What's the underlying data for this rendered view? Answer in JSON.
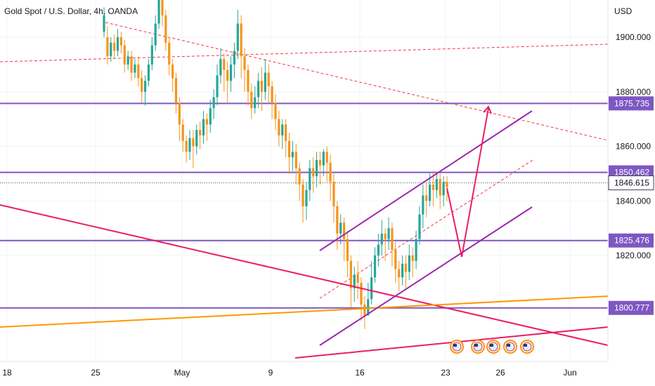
{
  "header": {
    "title": "Gold Spot / U.S. Dollar, 4h, OANDA",
    "currency": "USD"
  },
  "colors": {
    "up": "#26a69a",
    "down": "#f7931a",
    "purple": "#7e57c2",
    "violet": "#9c27b0",
    "pink": "#e91e63",
    "orange": "#ff9800",
    "red_dashed": "#f23645",
    "grid": "#f0f3fa",
    "text": "#131722"
  },
  "chart_data": {
    "type": "candlestick",
    "symbol": "XAUUSD",
    "timeframe": "4h",
    "ylim": [
      1790,
      1912
    ],
    "y_ticks": [
      "1900.000",
      "1880.000",
      "1860.000",
      "1840.000",
      "1820.000"
    ],
    "x_ticks": [
      "18",
      "25",
      "May",
      "9",
      "16",
      "23",
      "26",
      "Jun"
    ],
    "price_tags": [
      {
        "label": "1875.735",
        "value": 1875.735,
        "style": "purple"
      },
      {
        "label": "1850.462",
        "value": 1850.462,
        "style": "purple"
      },
      {
        "label": "1846.615",
        "value": 1846.615,
        "style": "current"
      },
      {
        "label": "1825.476",
        "value": 1825.476,
        "style": "purple"
      },
      {
        "label": "1800.777",
        "value": 1800.777,
        "style": "purple"
      }
    ],
    "horizontal_levels": [
      1875.735,
      1850.462,
      1825.476,
      1800.777
    ],
    "current_price": 1846.615,
    "candles": [
      [
        1902,
        1908,
        1900,
        1911
      ],
      [
        1900,
        1893,
        1890,
        1904
      ],
      [
        1893,
        1898,
        1891,
        1900
      ],
      [
        1898,
        1895,
        1892,
        1901
      ],
      [
        1895,
        1900,
        1893,
        1903
      ],
      [
        1900,
        1897,
        1894,
        1902
      ],
      [
        1897,
        1890,
        1887,
        1899
      ],
      [
        1890,
        1893,
        1888,
        1895
      ],
      [
        1893,
        1887,
        1884,
        1895
      ],
      [
        1887,
        1890,
        1885,
        1892
      ],
      [
        1890,
        1885,
        1882,
        1893
      ],
      [
        1885,
        1880,
        1876,
        1888
      ],
      [
        1880,
        1884,
        1875,
        1886
      ],
      [
        1884,
        1890,
        1882,
        1892
      ],
      [
        1890,
        1897,
        1888,
        1900
      ],
      [
        1897,
        1905,
        1895,
        1908
      ],
      [
        1905,
        1914,
        1903,
        1916
      ],
      [
        1914,
        1908,
        1904,
        1917
      ],
      [
        1908,
        1898,
        1895,
        1910
      ],
      [
        1898,
        1890,
        1886,
        1900
      ],
      [
        1890,
        1885,
        1880,
        1892
      ],
      [
        1885,
        1876,
        1872,
        1887
      ],
      [
        1876,
        1868,
        1862,
        1878
      ],
      [
        1868,
        1862,
        1858,
        1870
      ],
      [
        1862,
        1858,
        1854,
        1864
      ],
      [
        1858,
        1863,
        1855,
        1866
      ],
      [
        1863,
        1860,
        1852,
        1866
      ],
      [
        1860,
        1866,
        1857,
        1868
      ],
      [
        1866,
        1864,
        1859,
        1869
      ],
      [
        1864,
        1870,
        1861,
        1873
      ],
      [
        1870,
        1868,
        1862,
        1872
      ],
      [
        1868,
        1874,
        1865,
        1877
      ],
      [
        1874,
        1878,
        1870,
        1881
      ],
      [
        1878,
        1886,
        1875,
        1890
      ],
      [
        1886,
        1892,
        1883,
        1896
      ],
      [
        1892,
        1888,
        1880,
        1894
      ],
      [
        1888,
        1884,
        1876,
        1891
      ],
      [
        1884,
        1890,
        1880,
        1893
      ],
      [
        1890,
        1895,
        1885,
        1898
      ],
      [
        1895,
        1905,
        1892,
        1910
      ],
      [
        1905,
        1893,
        1885,
        1908
      ],
      [
        1893,
        1888,
        1880,
        1896
      ],
      [
        1888,
        1880,
        1875,
        1890
      ],
      [
        1880,
        1874,
        1870,
        1883
      ],
      [
        1874,
        1878,
        1872,
        1882
      ],
      [
        1878,
        1884,
        1874,
        1887
      ],
      [
        1884,
        1880,
        1873,
        1889
      ],
      [
        1880,
        1887,
        1877,
        1892
      ],
      [
        1887,
        1882,
        1876,
        1890
      ],
      [
        1882,
        1876,
        1870,
        1884
      ],
      [
        1876,
        1870,
        1866,
        1879
      ],
      [
        1870,
        1864,
        1860,
        1873
      ],
      [
        1864,
        1868,
        1859,
        1870
      ],
      [
        1868,
        1862,
        1856,
        1870
      ],
      [
        1862,
        1856,
        1850,
        1865
      ],
      [
        1856,
        1858,
        1851,
        1862
      ],
      [
        1858,
        1852,
        1846,
        1861
      ],
      [
        1852,
        1846,
        1840,
        1854
      ],
      [
        1846,
        1838,
        1832,
        1848
      ],
      [
        1838,
        1844,
        1833,
        1847
      ],
      [
        1844,
        1852,
        1840,
        1855
      ],
      [
        1852,
        1849,
        1843,
        1856
      ],
      [
        1849,
        1855,
        1845,
        1858
      ],
      [
        1855,
        1853,
        1846,
        1858
      ],
      [
        1853,
        1858,
        1849,
        1859
      ],
      [
        1858,
        1854,
        1847,
        1860
      ],
      [
        1854,
        1847,
        1840,
        1857
      ],
      [
        1847,
        1838,
        1832,
        1850
      ],
      [
        1838,
        1828,
        1822,
        1840
      ],
      [
        1828,
        1832,
        1824,
        1835
      ],
      [
        1832,
        1826,
        1818,
        1834
      ],
      [
        1826,
        1818,
        1812,
        1829
      ],
      [
        1818,
        1808,
        1801,
        1820
      ],
      [
        1808,
        1813,
        1803,
        1816
      ],
      [
        1813,
        1810,
        1804,
        1818
      ],
      [
        1810,
        1802,
        1796,
        1812
      ],
      [
        1802,
        1798,
        1793,
        1805
      ],
      [
        1798,
        1804,
        1798,
        1810
      ],
      [
        1804,
        1812,
        1802,
        1818
      ],
      [
        1812,
        1820,
        1810,
        1823
      ],
      [
        1820,
        1824,
        1816,
        1828
      ],
      [
        1824,
        1828,
        1820,
        1833
      ],
      [
        1828,
        1826,
        1818,
        1830
      ],
      [
        1826,
        1830,
        1822,
        1834
      ],
      [
        1830,
        1822,
        1816,
        1832
      ],
      [
        1822,
        1815,
        1810,
        1825
      ],
      [
        1815,
        1812,
        1807,
        1818
      ],
      [
        1812,
        1817,
        1809,
        1820
      ],
      [
        1817,
        1814,
        1808,
        1820
      ],
      [
        1814,
        1820,
        1811,
        1824
      ],
      [
        1820,
        1818,
        1812,
        1823
      ],
      [
        1818,
        1826,
        1815,
        1829
      ],
      [
        1826,
        1835,
        1824,
        1838
      ],
      [
        1835,
        1842,
        1830,
        1846
      ],
      [
        1842,
        1840,
        1834,
        1847
      ],
      [
        1840,
        1846,
        1838,
        1850
      ],
      [
        1846,
        1844,
        1838,
        1851
      ],
      [
        1844,
        1848,
        1841,
        1850
      ],
      [
        1848,
        1842,
        1837,
        1850
      ],
      [
        1842,
        1847,
        1838,
        1849
      ],
      [
        1847,
        1845,
        1840,
        1849
      ]
    ]
  },
  "drawings": {
    "channel_upper": "violet line",
    "channel_lower": "violet line",
    "channel_mid": "red dashed line",
    "projection_arrow": "pink zigzag arrow up",
    "downtrend_line": "pink line",
    "uptrend_line": "orange line",
    "event_icons": [
      "us-flag-icon",
      "us-flag-icon",
      "us-flag-icon",
      "us-flag-icon",
      "us-flag-icon"
    ]
  }
}
